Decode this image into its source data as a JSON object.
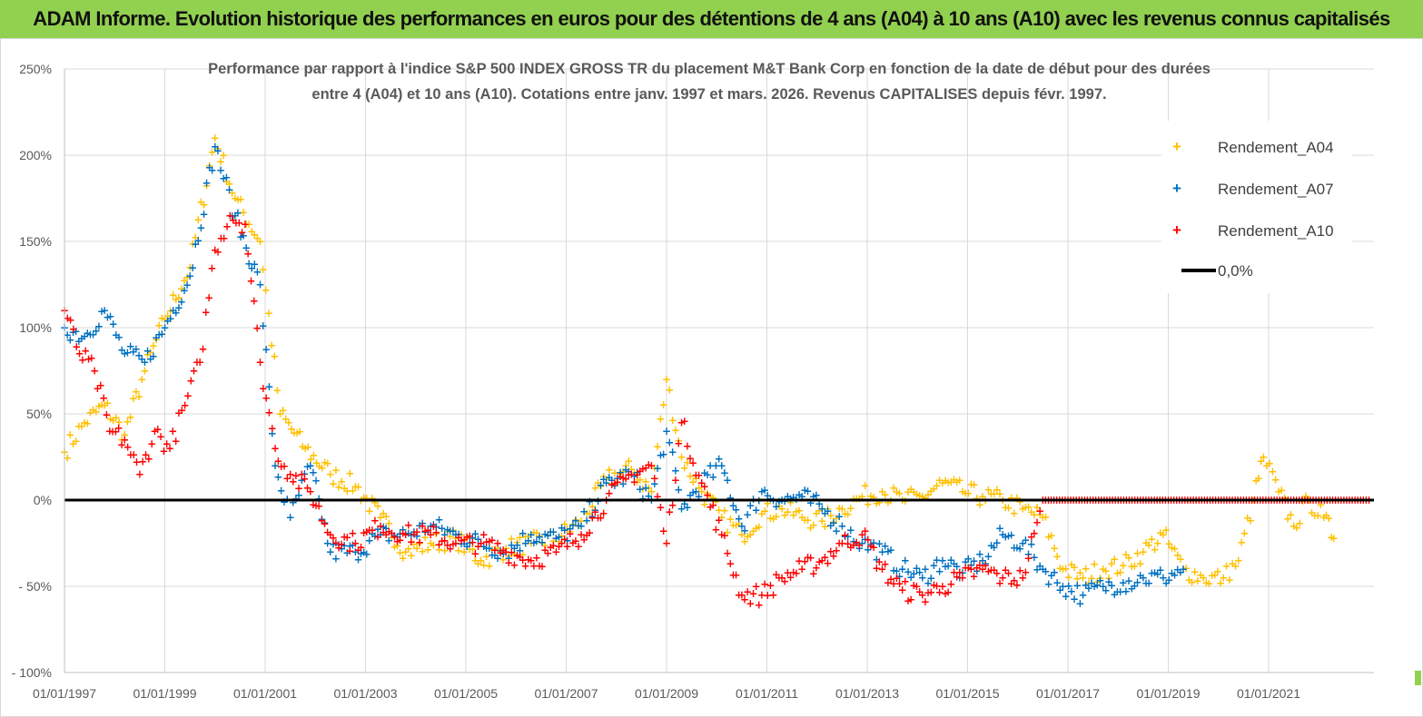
{
  "banner": {
    "title": "ADAM Informe. Evolution historique des performances en euros pour des détentions de 4 ans (A04) à 10 ans (A10) avec les revenus connus capitalisés"
  },
  "colors": {
    "banner_bg": "#92d050",
    "a04": "#ffc000",
    "a07": "#0070c0",
    "a10": "#ff0000",
    "zero": "#000000",
    "grid": "#d9d9d9"
  },
  "chart_data": {
    "type": "scatter",
    "title_line1": "Performance par rapport à l'indice S&P 500 INDEX GROSS TR  du placement M&T Bank Corp en fonction de la date de début pour des durées",
    "title_line2": "entre 4 (A04) et 10 ans (A10). Cotations entre janv. 1997 et mars. 2026. Revenus CAPITALISES depuis févr. 1997.",
    "xlabel": "",
    "ylabel": "",
    "x_range": [
      1997.0,
      2023.1
    ],
    "ylim": [
      -100,
      250
    ],
    "y_ticks": [
      250,
      200,
      150,
      100,
      50,
      0,
      -50,
      -100
    ],
    "y_tick_labels": [
      "250%",
      "200%",
      "150%",
      "100%",
      "50%",
      "0%",
      "- 50%",
      "- 100%"
    ],
    "x_ticks": [
      1997,
      1999,
      2001,
      2003,
      2005,
      2007,
      2009,
      2011,
      2013,
      2015,
      2017,
      2019,
      2021
    ],
    "x_tick_labels": [
      "01/01/1997",
      "01/01/1999",
      "01/01/2001",
      "01/01/2003",
      "01/01/2005",
      "01/01/2007",
      "01/01/2009",
      "01/01/2011",
      "01/01/2013",
      "01/01/2015",
      "01/01/2017",
      "01/01/2019",
      "01/01/2021"
    ],
    "grid": true,
    "legend_position": "top-right",
    "series": [
      {
        "name": "Rendement_A04",
        "color": "#ffc000",
        "x": [
          1997.0,
          1997.4,
          1997.8,
          1998.2,
          1998.6,
          1999.0,
          1999.5,
          2000.0,
          2000.4,
          2000.9,
          2001.3,
          2001.8,
          2002.3,
          2002.8,
          2003.3,
          2003.8,
          2004.3,
          2004.8,
          2005.3,
          2005.8,
          2006.3,
          2006.8,
          2007.3,
          2007.8,
          2008.3,
          2008.7,
          2009.0,
          2009.3,
          2009.7,
          2010.1,
          2010.5,
          2010.9,
          2011.3,
          2011.7,
          2012.1,
          2012.5,
          2012.9,
          2013.3,
          2013.7,
          2014.1,
          2014.5,
          2014.9,
          2015.3,
          2015.7,
          2016.1,
          2016.5,
          2016.9,
          2017.3,
          2017.7,
          2018.1,
          2018.5,
          2018.9,
          2019.3,
          2019.7,
          2020.1,
          2020.4,
          2020.7,
          2020.9,
          2021.2,
          2021.5,
          2021.8,
          2022.1,
          2022.3
        ],
        "y": [
          28,
          45,
          55,
          38,
          75,
          105,
          135,
          210,
          175,
          150,
          50,
          30,
          15,
          8,
          -10,
          -30,
          -25,
          -22,
          -35,
          -28,
          -25,
          -22,
          -12,
          12,
          18,
          5,
          70,
          25,
          5,
          -10,
          -20,
          -8,
          -5,
          -10,
          -12,
          -5,
          2,
          5,
          0,
          2,
          10,
          5,
          2,
          0,
          -5,
          -10,
          -40,
          -45,
          -40,
          -38,
          -30,
          -20,
          -40,
          -45,
          -45,
          -35,
          0,
          25,
          5,
          -15,
          0,
          -10,
          -22
        ]
      },
      {
        "name": "Rendement_A07",
        "color": "#0070c0",
        "x": [
          1997.0,
          1997.4,
          1997.8,
          1998.2,
          1998.6,
          1999.0,
          1999.5,
          2000.0,
          2000.4,
          2000.9,
          2001.2,
          2001.5,
          2001.9,
          2002.3,
          2002.8,
          2003.3,
          2003.8,
          2004.3,
          2004.8,
          2005.3,
          2005.8,
          2006.3,
          2006.8,
          2007.3,
          2007.8,
          2008.3,
          2008.7,
          2009.0,
          2009.3,
          2009.7,
          2010.1,
          2010.5,
          2010.9,
          2011.3,
          2011.7,
          2012.1,
          2012.5,
          2012.9,
          2013.3,
          2013.7,
          2014.1,
          2014.5,
          2014.9,
          2015.3,
          2015.7,
          2016.1,
          2016.5,
          2016.9,
          2017.3,
          2017.7,
          2018.1,
          2018.5,
          2018.9,
          2019.3
        ],
        "y": [
          100,
          95,
          110,
          85,
          80,
          100,
          130,
          205,
          165,
          125,
          20,
          -10,
          20,
          -30,
          -30,
          -20,
          -20,
          -15,
          -20,
          -25,
          -30,
          -20,
          -22,
          -15,
          10,
          15,
          0,
          40,
          -5,
          10,
          20,
          -15,
          5,
          0,
          2,
          -5,
          -15,
          -25,
          -30,
          -40,
          -45,
          -35,
          -42,
          -35,
          -20,
          -25,
          -40,
          -50,
          -55,
          -50,
          -48,
          -45,
          -45,
          -40
        ]
      },
      {
        "name": "Rendement_A10",
        "color": "#ff0000",
        "x": [
          1997.0,
          1997.3,
          1997.6,
          1997.9,
          1998.2,
          1998.5,
          1998.8,
          1999.1,
          1999.4,
          1999.7,
          2000.0,
          2000.3,
          2000.6,
          2000.9,
          2001.2,
          2001.5,
          2001.9,
          2002.3,
          2002.8,
          2003.3,
          2003.8,
          2004.3,
          2004.8,
          2005.3,
          2005.8,
          2006.3,
          2006.8,
          2007.3,
          2007.8,
          2008.3,
          2008.7,
          2009.0,
          2009.3,
          2009.7,
          2010.1,
          2010.5,
          2010.9,
          2011.3,
          2011.7,
          2012.1,
          2012.5,
          2012.9,
          2013.3,
          2013.7,
          2014.1,
          2014.5,
          2014.9,
          2015.3,
          2015.7,
          2016.1,
          2016.5,
          2017.0,
          2017.5,
          2018.0,
          2018.5,
          2019.0,
          2019.5,
          2020.0,
          2020.5,
          2021.0,
          2021.5,
          2022.0,
          2022.5,
          2023.0
        ],
        "y": [
          110,
          85,
          75,
          40,
          35,
          15,
          40,
          30,
          55,
          80,
          145,
          165,
          160,
          80,
          30,
          15,
          5,
          -20,
          -25,
          -15,
          -20,
          -20,
          -25,
          -25,
          -30,
          -35,
          -30,
          -20,
          0,
          15,
          20,
          -25,
          45,
          10,
          -20,
          -55,
          -55,
          -45,
          -40,
          -35,
          -25,
          -20,
          -40,
          -52,
          -55,
          -50,
          -45,
          -40,
          -45,
          -45,
          0,
          0,
          0,
          0,
          0,
          0,
          0,
          0,
          0,
          0,
          0,
          0,
          0,
          0
        ]
      }
    ],
    "reference_line": {
      "name": "0,0%",
      "y": 0,
      "color": "#000000"
    }
  }
}
